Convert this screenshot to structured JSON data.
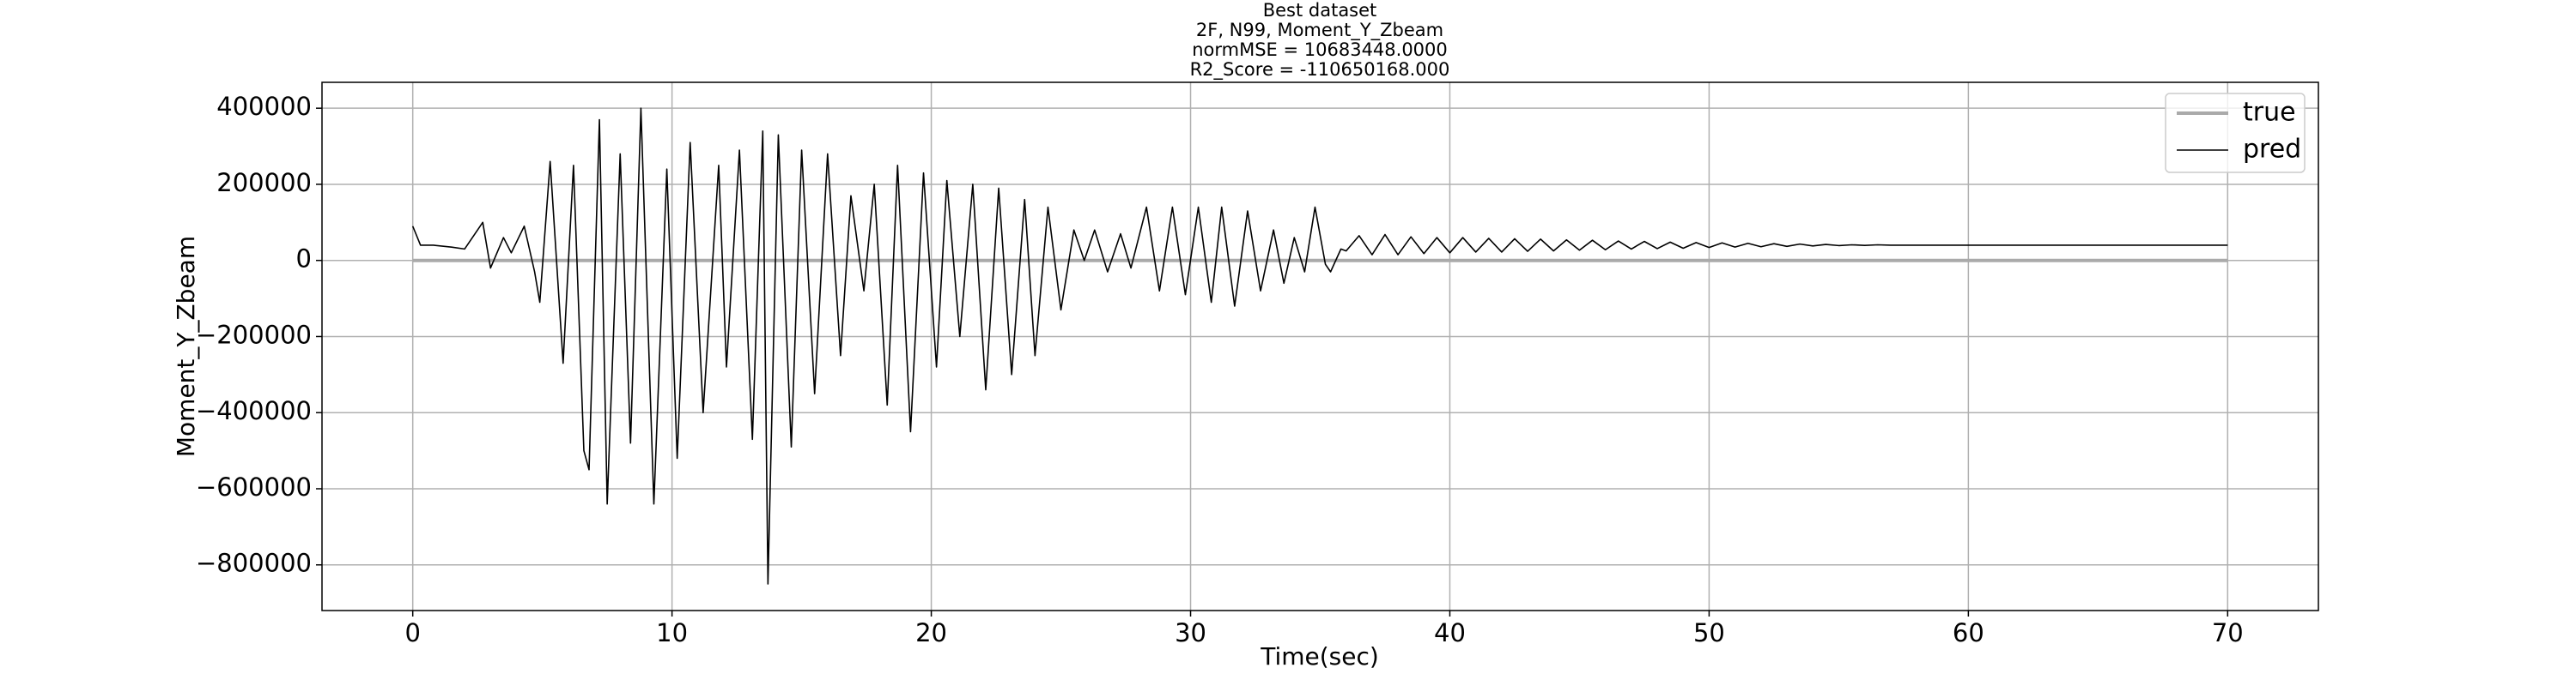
{
  "chart_data": {
    "type": "line",
    "title": [
      "Best dataset",
      "2F, N99, Moment_Y_Zbeam",
      "normMSE = 10683448.0000",
      "R2_Score = -110650168.000"
    ],
    "x_label": "Time(sec)",
    "y_label": "Moment_Y_Zbeam",
    "xlim": [
      -3.5,
      73.5
    ],
    "ylim": [
      -920000,
      468000
    ],
    "xticks": [
      0,
      10,
      20,
      30,
      40,
      50,
      60,
      70
    ],
    "yticks": [
      {
        "value": -800000,
        "label": "−800000"
      },
      {
        "value": -600000,
        "label": "−600000"
      },
      {
        "value": -400000,
        "label": "−400000"
      },
      {
        "value": -200000,
        "label": "−200000"
      },
      0,
      200000,
      400000
    ],
    "grid": true,
    "legend": "upper right",
    "series": [
      {
        "name": "true",
        "color": "#aaaaaa",
        "x": [
          0,
          70
        ],
        "values": [
          0,
          0
        ]
      },
      {
        "name": "pred",
        "color": "#000000",
        "x": [
          0,
          0.3,
          0.8,
          1.5,
          2.0,
          2.7,
          3.0,
          3.5,
          3.8,
          4.3,
          4.7,
          4.9,
          5.3,
          5.8,
          6.2,
          6.6,
          6.8,
          7.2,
          7.5,
          8.0,
          8.4,
          8.8,
          9.3,
          9.8,
          10.2,
          10.7,
          11.2,
          11.8,
          12.1,
          12.6,
          13.1,
          13.5,
          13.7,
          14.1,
          14.6,
          15.0,
          15.5,
          16.0,
          16.5,
          16.9,
          17.4,
          17.8,
          18.3,
          18.7,
          19.2,
          19.7,
          20.2,
          20.6,
          21.1,
          21.6,
          22.1,
          22.6,
          23.1,
          23.6,
          24.0,
          24.5,
          25.0,
          25.5,
          25.9,
          26.3,
          26.8,
          27.3,
          27.7,
          28.3,
          28.8,
          29.3,
          29.8,
          30.3,
          30.8,
          31.2,
          31.7,
          32.2,
          32.7,
          33.2,
          33.6,
          34.0,
          34.4,
          34.8,
          35.2,
          35.4,
          35.8,
          36.0,
          36.5,
          37.0,
          37.5,
          38.0,
          38.5,
          39.0,
          39.5,
          40.0,
          40.5,
          41.0,
          41.5,
          42.0,
          42.5,
          43.0,
          43.5,
          44.0,
          44.5,
          45.0,
          45.5,
          46.0,
          46.5,
          47.0,
          47.5,
          48.0,
          48.5,
          49.0,
          49.5,
          50.0,
          50.5,
          51.0,
          51.5,
          52.0,
          52.5,
          53.0,
          53.5,
          54.0,
          54.5,
          55.0,
          55.5,
          56.0,
          56.5,
          57.0,
          60,
          70
        ],
        "values": [
          90000,
          40000,
          40000,
          35000,
          30000,
          100000,
          -20000,
          60000,
          20000,
          90000,
          -30000,
          -110000,
          260000,
          -270000,
          250000,
          -500000,
          -550000,
          370000,
          -640000,
          280000,
          -480000,
          400000,
          -640000,
          240000,
          -520000,
          310000,
          -400000,
          250000,
          -280000,
          290000,
          -470000,
          340000,
          -850000,
          330000,
          -490000,
          290000,
          -350000,
          280000,
          -250000,
          170000,
          -80000,
          200000,
          -380000,
          250000,
          -450000,
          230000,
          -280000,
          210000,
          -200000,
          200000,
          -340000,
          190000,
          -300000,
          160000,
          -250000,
          140000,
          -130000,
          80000,
          0,
          80000,
          -30000,
          70000,
          -20000,
          140000,
          -80000,
          140000,
          -90000,
          140000,
          -110000,
          140000,
          -120000,
          130000,
          -80000,
          80000,
          -60000,
          60000,
          -30000,
          140000,
          -10000,
          -30000,
          30000,
          25000,
          65000,
          15000,
          68000,
          15000,
          62000,
          18000,
          60000,
          20000,
          60000,
          22000,
          58000,
          22000,
          57000,
          24000,
          56000,
          25000,
          54000,
          27000,
          53000,
          28000,
          51000,
          30000,
          50000,
          31000,
          48000,
          32000,
          47000,
          34000,
          46000,
          35000,
          45000,
          36000,
          44000,
          37000,
          43000,
          38000,
          42000,
          39000,
          41000,
          39500,
          41000,
          40000,
          40000,
          40000
        ]
      }
    ]
  }
}
